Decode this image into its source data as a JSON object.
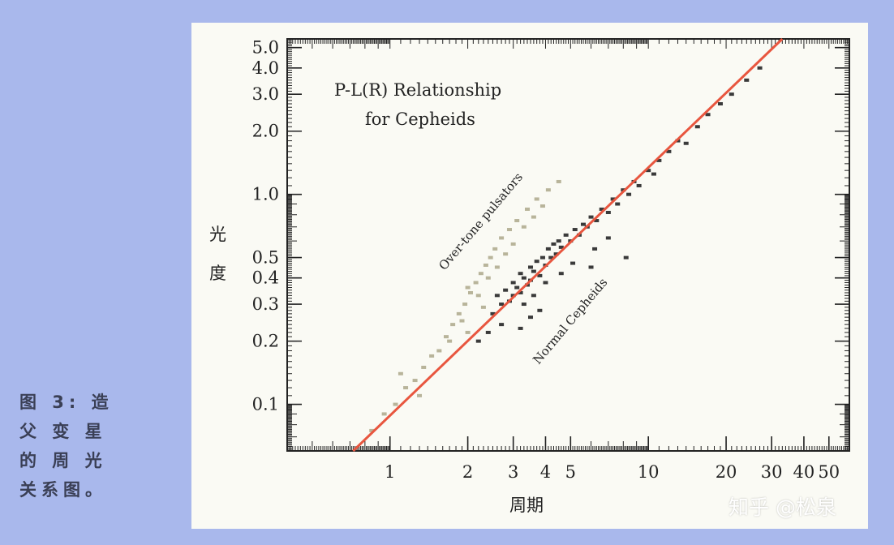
{
  "caption": {
    "lines": [
      "图 3: 造",
      "父 变 星",
      "的 周 光",
      "关系图。"
    ]
  },
  "watermark": "知乎 @松泉",
  "chart_data": {
    "type": "scatter",
    "title": "P-L(R) Relationship",
    "subtitle": "for Cepheids",
    "xlabel": "周期",
    "ylabel": "光度",
    "x_scale": "log",
    "y_scale": "log",
    "xlim": [
      0.4,
      60
    ],
    "ylim": [
      0.06,
      5.5
    ],
    "x_ticks": [
      1,
      2,
      3,
      4,
      5,
      10,
      20,
      30,
      40,
      50
    ],
    "x_tick_labels": [
      "1",
      "2",
      "3",
      "4",
      "5",
      "10",
      "20",
      "30",
      "40",
      "50"
    ],
    "y_ticks": [
      0.1,
      0.2,
      0.3,
      0.4,
      0.5,
      1.0,
      2.0,
      3.0,
      4.0,
      5.0
    ],
    "y_tick_labels": [
      "0.1",
      "0.2",
      "0.3",
      "0.4",
      "0.5",
      "1.0",
      "2.0",
      "3.0",
      "4.0",
      "5.0"
    ],
    "annotations": [
      {
        "text": "Over-tone pulsators",
        "x": 2.8,
        "y": 0.52
      },
      {
        "text": "Normal Cepheids",
        "x": 5.5,
        "y": 0.2
      }
    ],
    "fit_line": {
      "name": "",
      "color": "#e8563f",
      "points": [
        [
          0.72,
          0.055
        ],
        [
          33,
          5.5
        ]
      ]
    },
    "series": [
      {
        "name": "",
        "color": "#3a3a3a",
        "points": [
          [
            2.6,
            0.33
          ],
          [
            2.7,
            0.3
          ],
          [
            2.8,
            0.35
          ],
          [
            2.9,
            0.31
          ],
          [
            3.0,
            0.38
          ],
          [
            3.0,
            0.33
          ],
          [
            3.1,
            0.36
          ],
          [
            3.2,
            0.42
          ],
          [
            3.2,
            0.34
          ],
          [
            3.3,
            0.4
          ],
          [
            3.4,
            0.37
          ],
          [
            3.5,
            0.45
          ],
          [
            3.5,
            0.39
          ],
          [
            3.6,
            0.43
          ],
          [
            3.7,
            0.48
          ],
          [
            3.8,
            0.41
          ],
          [
            3.9,
            0.5
          ],
          [
            4.0,
            0.46
          ],
          [
            4.1,
            0.55
          ],
          [
            4.2,
            0.5
          ],
          [
            4.3,
            0.58
          ],
          [
            4.4,
            0.52
          ],
          [
            4.5,
            0.6
          ],
          [
            4.6,
            0.56
          ],
          [
            4.8,
            0.64
          ],
          [
            5.0,
            0.6
          ],
          [
            5.2,
            0.68
          ],
          [
            5.4,
            0.64
          ],
          [
            5.6,
            0.72
          ],
          [
            5.8,
            0.7
          ],
          [
            6.0,
            0.78
          ],
          [
            6.3,
            0.75
          ],
          [
            6.6,
            0.85
          ],
          [
            7.0,
            0.82
          ],
          [
            7.3,
            0.95
          ],
          [
            7.6,
            0.9
          ],
          [
            8.0,
            1.05
          ],
          [
            8.4,
            1.0
          ],
          [
            8.8,
            1.15
          ],
          [
            9.2,
            1.1
          ],
          [
            10.0,
            1.3
          ],
          [
            10.5,
            1.25
          ],
          [
            11.0,
            1.45
          ],
          [
            12.0,
            1.6
          ],
          [
            13.0,
            1.8
          ],
          [
            14.0,
            1.75
          ],
          [
            15.5,
            2.1
          ],
          [
            17.0,
            2.4
          ],
          [
            19.0,
            2.7
          ],
          [
            21.0,
            3.0
          ],
          [
            24.0,
            3.5
          ],
          [
            27.0,
            4.0
          ],
          [
            2.5,
            0.27
          ],
          [
            2.7,
            0.24
          ],
          [
            3.3,
            0.3
          ],
          [
            3.6,
            0.33
          ],
          [
            4.0,
            0.38
          ],
          [
            4.6,
            0.42
          ],
          [
            5.1,
            0.47
          ],
          [
            6.2,
            0.55
          ],
          [
            7.0,
            0.62
          ],
          [
            3.2,
            0.23
          ],
          [
            3.5,
            0.26
          ],
          [
            2.2,
            0.2
          ],
          [
            2.4,
            0.22
          ],
          [
            8.2,
            0.5
          ],
          [
            6.0,
            0.45
          ],
          [
            3.8,
            0.28
          ]
        ]
      },
      {
        "name": "",
        "color": "#b8b49a",
        "points": [
          [
            0.85,
            0.075
          ],
          [
            0.95,
            0.09
          ],
          [
            1.05,
            0.1
          ],
          [
            1.15,
            0.12
          ],
          [
            1.25,
            0.13
          ],
          [
            1.35,
            0.15
          ],
          [
            1.45,
            0.17
          ],
          [
            1.55,
            0.18
          ],
          [
            1.65,
            0.21
          ],
          [
            1.75,
            0.24
          ],
          [
            1.85,
            0.27
          ],
          [
            1.95,
            0.3
          ],
          [
            2.05,
            0.34
          ],
          [
            2.15,
            0.38
          ],
          [
            2.25,
            0.42
          ],
          [
            2.35,
            0.46
          ],
          [
            2.45,
            0.5
          ],
          [
            2.55,
            0.55
          ],
          [
            2.7,
            0.62
          ],
          [
            2.9,
            0.68
          ],
          [
            3.1,
            0.75
          ],
          [
            3.4,
            0.85
          ],
          [
            3.7,
            0.95
          ],
          [
            4.1,
            1.05
          ],
          [
            4.5,
            1.15
          ],
          [
            1.7,
            0.2
          ],
          [
            1.9,
            0.25
          ],
          [
            2.0,
            0.36
          ],
          [
            2.2,
            0.33
          ],
          [
            2.4,
            0.4
          ],
          [
            2.6,
            0.45
          ],
          [
            2.8,
            0.52
          ],
          [
            3.0,
            0.58
          ],
          [
            3.3,
            0.7
          ],
          [
            3.6,
            0.78
          ],
          [
            1.3,
            0.11
          ],
          [
            1.1,
            0.14
          ],
          [
            2.3,
            0.29
          ],
          [
            2.0,
            0.22
          ],
          [
            3.9,
            0.88
          ]
        ]
      }
    ]
  }
}
